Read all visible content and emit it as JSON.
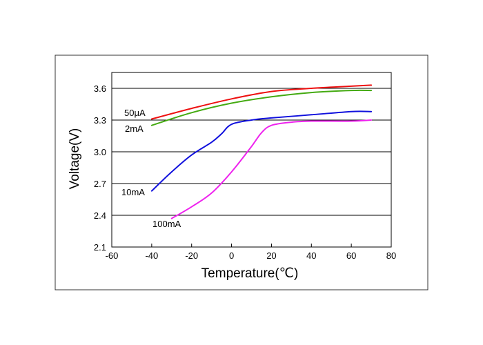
{
  "chart_data": {
    "type": "line",
    "title": "",
    "xlabel": "Temperature(℃)",
    "ylabel": "Voltage(V)",
    "xlim": [
      -60,
      80
    ],
    "ylim": [
      2.1,
      3.75
    ],
    "xticks": [
      -60,
      -40,
      -20,
      0,
      20,
      40,
      60,
      80
    ],
    "yticks": [
      2.1,
      2.4,
      2.7,
      3.0,
      3.3,
      3.6
    ],
    "ytick_labels": [
      "2.1",
      "2.4",
      "2.7",
      "3.0",
      "3.3",
      "3.6"
    ],
    "grid": "horizontal",
    "legend": "inline labels",
    "series": [
      {
        "name": "50μA",
        "color": "#ee1111",
        "x": [
          -40,
          -20,
          0,
          20,
          40,
          60,
          70
        ],
        "y": [
          3.31,
          3.41,
          3.5,
          3.57,
          3.6,
          3.62,
          3.63
        ]
      },
      {
        "name": "2mA",
        "color": "#44aa11",
        "x": [
          -40,
          -20,
          0,
          20,
          40,
          60,
          70
        ],
        "y": [
          3.25,
          3.37,
          3.46,
          3.52,
          3.56,
          3.58,
          3.58
        ]
      },
      {
        "name": "10mA",
        "color": "#1111dd",
        "x": [
          -40,
          -30,
          -20,
          -10,
          -5,
          0,
          10,
          20,
          40,
          60,
          70
        ],
        "y": [
          2.63,
          2.81,
          2.97,
          3.09,
          3.17,
          3.26,
          3.3,
          3.32,
          3.35,
          3.38,
          3.38
        ]
      },
      {
        "name": "100mA",
        "color": "#ee22ee",
        "x": [
          -30,
          -20,
          -10,
          0,
          10,
          15,
          20,
          30,
          40,
          60,
          70
        ],
        "y": [
          2.37,
          2.48,
          2.61,
          2.81,
          3.05,
          3.18,
          3.25,
          3.28,
          3.29,
          3.29,
          3.3
        ]
      }
    ]
  }
}
